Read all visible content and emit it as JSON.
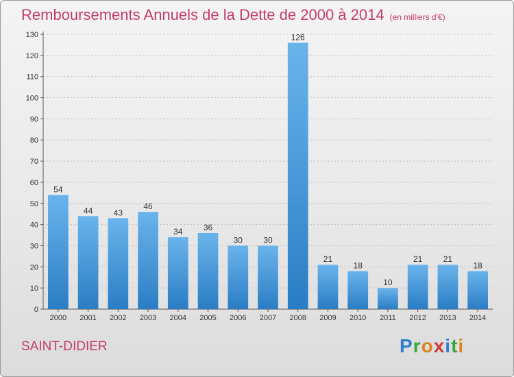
{
  "title": "Remboursements Annuels de la Dette de 2000 à 2014",
  "unit": "(en milliers d'€)",
  "city": "SAINT-DIDIER",
  "brand": {
    "letters": [
      "P",
      "r",
      "o",
      "x",
      "i",
      "t",
      "i"
    ],
    "colors": [
      "#2f7fd1",
      "#3aa63a",
      "#e0831f",
      "#d23a3a",
      "#2f7fd1",
      "#3aa63a",
      "#e0831f"
    ]
  },
  "colors": {
    "bar_top": "#6ab4ec",
    "bar_bottom": "#2a7dc4",
    "title": "#c63a6b",
    "grid": "#bdbdbd"
  },
  "chart_data": {
    "type": "bar",
    "categories": [
      "2000",
      "2001",
      "2002",
      "2003",
      "2004",
      "2005",
      "2006",
      "2007",
      "2008",
      "2009",
      "2010",
      "2011",
      "2012",
      "2013",
      "2014"
    ],
    "values": [
      54,
      44,
      43,
      46,
      34,
      36,
      30,
      30,
      126,
      21,
      18,
      10,
      21,
      21,
      18
    ],
    "ylim": [
      0,
      130
    ],
    "yticks": [
      0,
      10,
      20,
      30,
      40,
      50,
      60,
      70,
      80,
      90,
      100,
      110,
      120,
      130
    ],
    "grid": true,
    "title": "Remboursements Annuels de la Dette de 2000 à 2014",
    "xlabel": "",
    "ylabel": ""
  }
}
